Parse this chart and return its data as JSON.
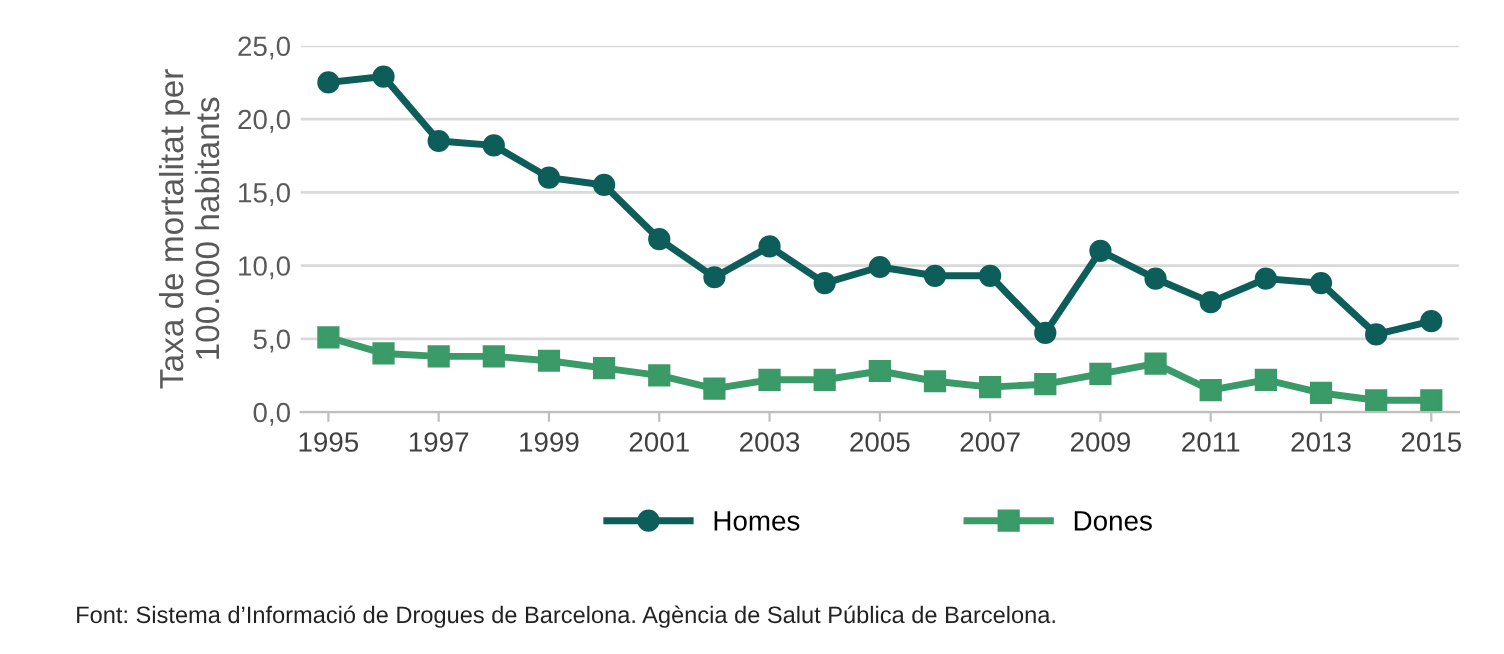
{
  "chart_data": {
    "type": "line",
    "ylabel": "Taxa de mortalitat per\n100.000 habitants",
    "x": [
      1995,
      1996,
      1997,
      1998,
      1999,
      2000,
      2001,
      2002,
      2003,
      2004,
      2005,
      2006,
      2007,
      2008,
      2009,
      2010,
      2011,
      2012,
      2013,
      2014,
      2015
    ],
    "series": [
      {
        "name": "Homes",
        "color": "#0d5e5a",
        "marker": "circle",
        "values": [
          22.5,
          22.9,
          18.5,
          18.2,
          16.0,
          15.5,
          11.8,
          9.2,
          11.3,
          8.8,
          9.9,
          9.3,
          9.3,
          5.4,
          11.0,
          9.1,
          7.5,
          9.1,
          8.8,
          5.3,
          6.2
        ]
      },
      {
        "name": "Dones",
        "color": "#3a9a68",
        "marker": "square",
        "values": [
          5.1,
          4.0,
          3.8,
          3.8,
          3.5,
          3.0,
          2.5,
          1.6,
          2.2,
          2.2,
          2.8,
          2.1,
          1.7,
          1.9,
          2.6,
          3.3,
          1.5,
          2.2,
          1.3,
          0.8,
          0.8
        ]
      }
    ],
    "xlim": [
      1994.5,
      2015.5
    ],
    "xticks": [
      1995,
      1997,
      1999,
      2001,
      2003,
      2005,
      2007,
      2009,
      2011,
      2013,
      2015
    ],
    "ylim": [
      0,
      25
    ],
    "yticks": [
      {
        "value": 0,
        "label": "0,0"
      },
      {
        "value": 5,
        "label": "5,0"
      },
      {
        "value": 10,
        "label": "10,0"
      },
      {
        "value": 15,
        "label": "15,0"
      },
      {
        "value": 20,
        "label": "20,0"
      },
      {
        "value": 25,
        "label": "25,0"
      }
    ],
    "grid": "y",
    "legend": "bottom",
    "line_style": "solid",
    "annotations": [
      "Font: Sistema d’Informació de Drogues de Barcelona. Agència de Salut Pública de Barcelona."
    ]
  }
}
